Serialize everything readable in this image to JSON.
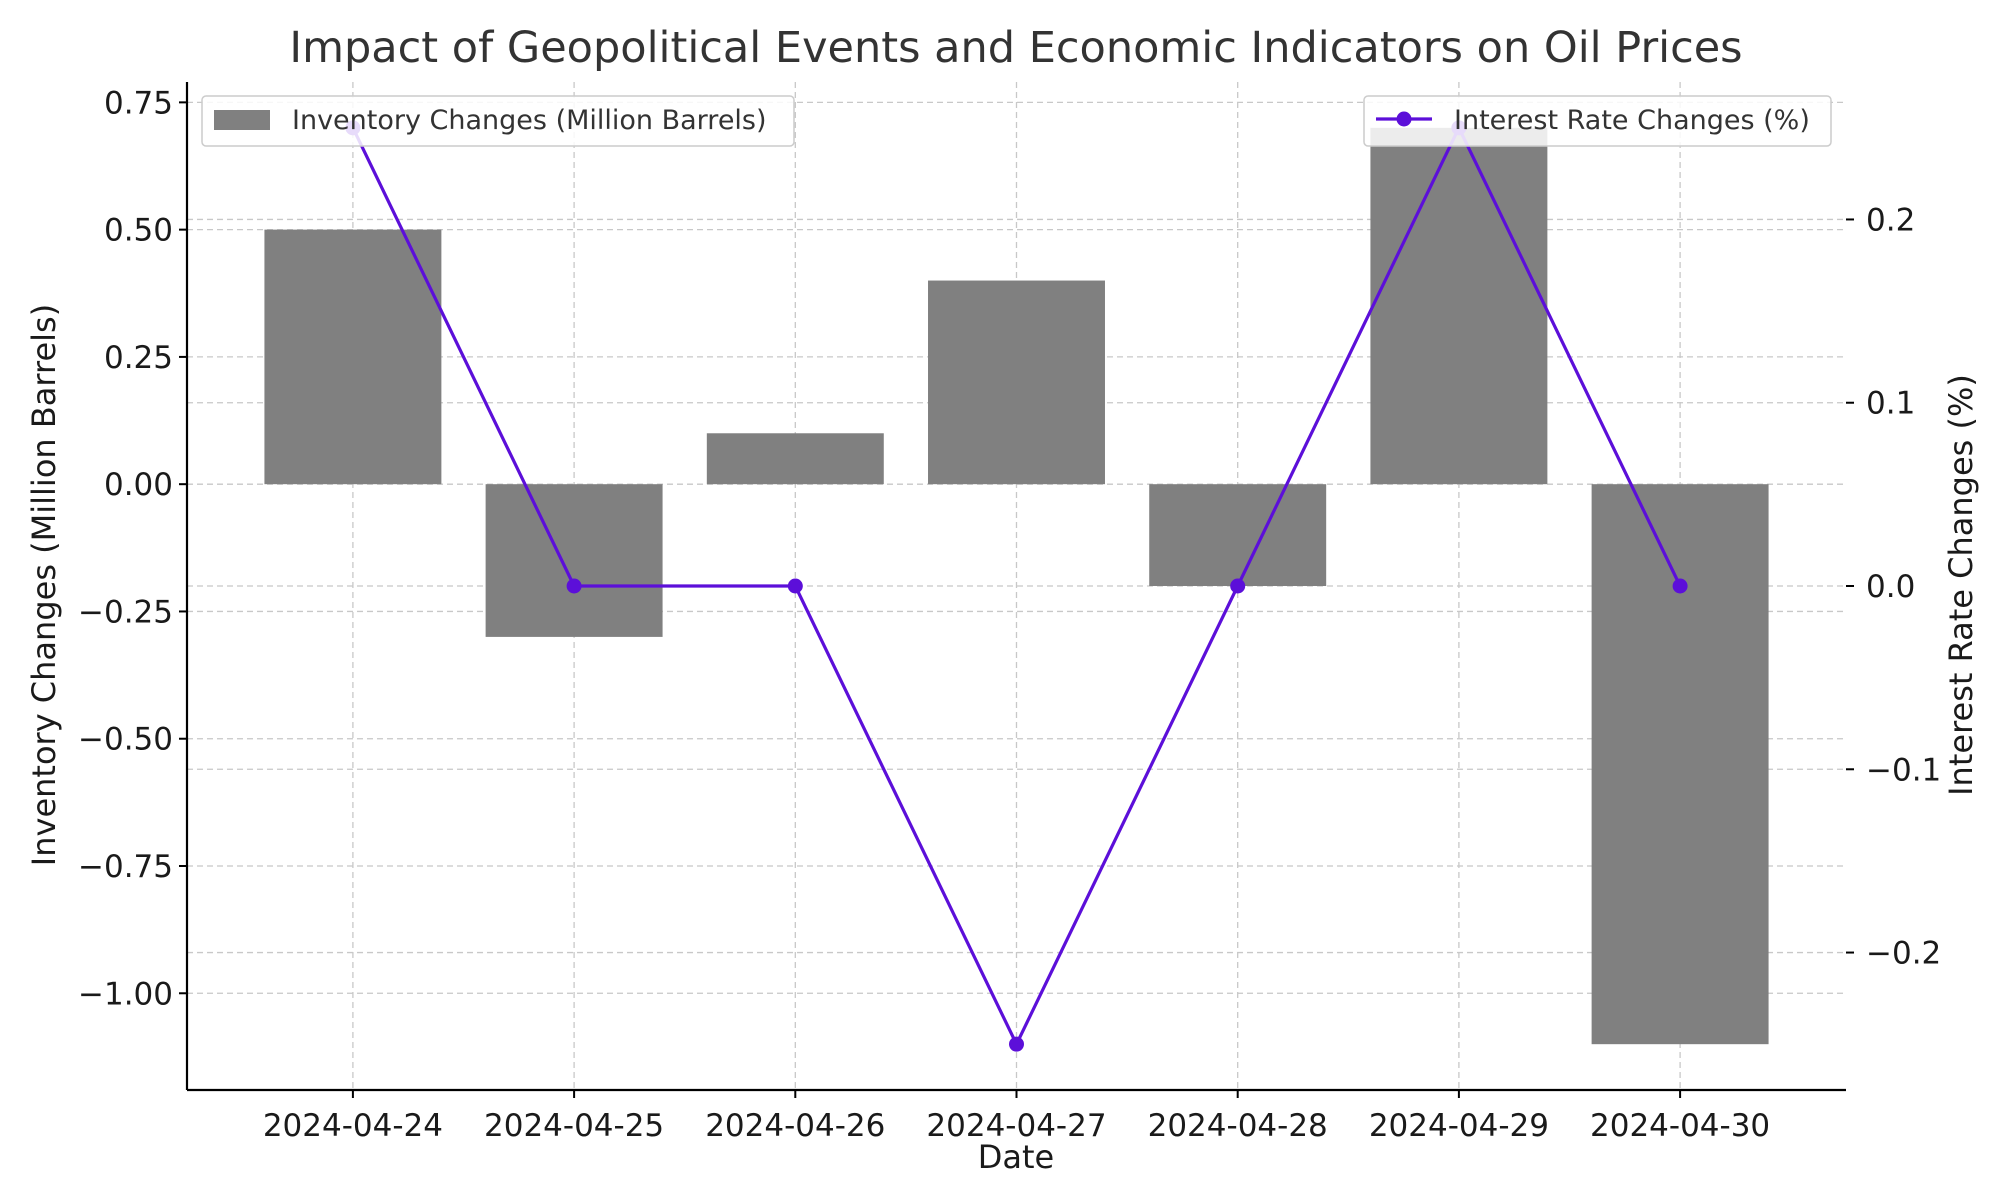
{
  "chart_data": {
    "type": "bar",
    "title": "Impact of Geopolitical Events and Economic Indicators on Oil Prices",
    "xlabel": "Date",
    "categories": [
      "2024-04-24",
      "2024-04-25",
      "2024-04-26",
      "2024-04-27",
      "2024-04-28",
      "2024-04-29",
      "2024-04-30"
    ],
    "series": [
      {
        "name": "Inventory Changes (Million Barrels)",
        "type": "bar",
        "axis": "left",
        "color": "#808080",
        "values": [
          0.5,
          -0.3,
          0.1,
          0.4,
          -0.2,
          0.7,
          -1.1
        ]
      },
      {
        "name": "Interest Rate Changes (%)",
        "type": "line",
        "axis": "right",
        "color": "#5c0fd9",
        "marker": "circle",
        "values": [
          0.25,
          0.0,
          0.0,
          -0.25,
          0.0,
          0.25,
          0.0
        ]
      }
    ],
    "y_left": {
      "label": "Inventory Changes (Million Barrels)",
      "ylim": [
        -1.19,
        0.79
      ],
      "ticks": [
        0.75,
        0.5,
        0.25,
        0.0,
        -0.25,
        -0.5,
        -0.75,
        -1.0
      ],
      "tick_labels": [
        "0.75",
        "0.50",
        "0.25",
        "0.00",
        "−0.25",
        "−0.50",
        "−0.75",
        "−1.00"
      ]
    },
    "y_right": {
      "label": "Interest Rate Changes (%)",
      "ylim": [
        -0.275,
        0.275
      ],
      "ticks": [
        0.2,
        0.1,
        0.0,
        -0.1,
        -0.2
      ],
      "tick_labels": [
        "0.2",
        "0.1",
        "0.0",
        "−0.1",
        "−0.2"
      ]
    },
    "grid": true,
    "legends": [
      {
        "placement": "top-left",
        "series": 0
      },
      {
        "placement": "top-right",
        "series": 1
      }
    ]
  }
}
